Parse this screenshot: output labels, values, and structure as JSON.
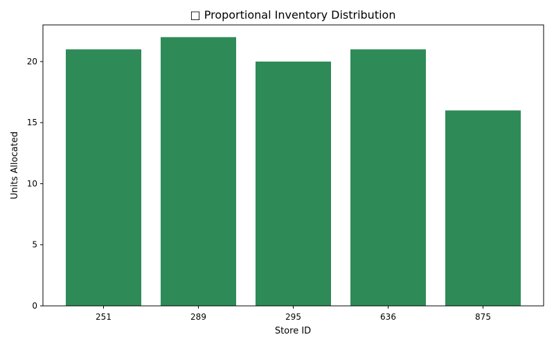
{
  "chart_data": {
    "type": "bar",
    "title": "□ Proportional Inventory Distribution",
    "xlabel": "Store ID",
    "ylabel": "Units Allocated",
    "categories": [
      "251",
      "289",
      "295",
      "636",
      "875"
    ],
    "values": [
      21,
      22,
      20,
      21,
      16
    ],
    "ylim": [
      0,
      23
    ],
    "yticks": [
      0,
      5,
      10,
      15,
      20
    ],
    "bar_color": "#2e8b57",
    "grid": false,
    "legend": "none"
  }
}
